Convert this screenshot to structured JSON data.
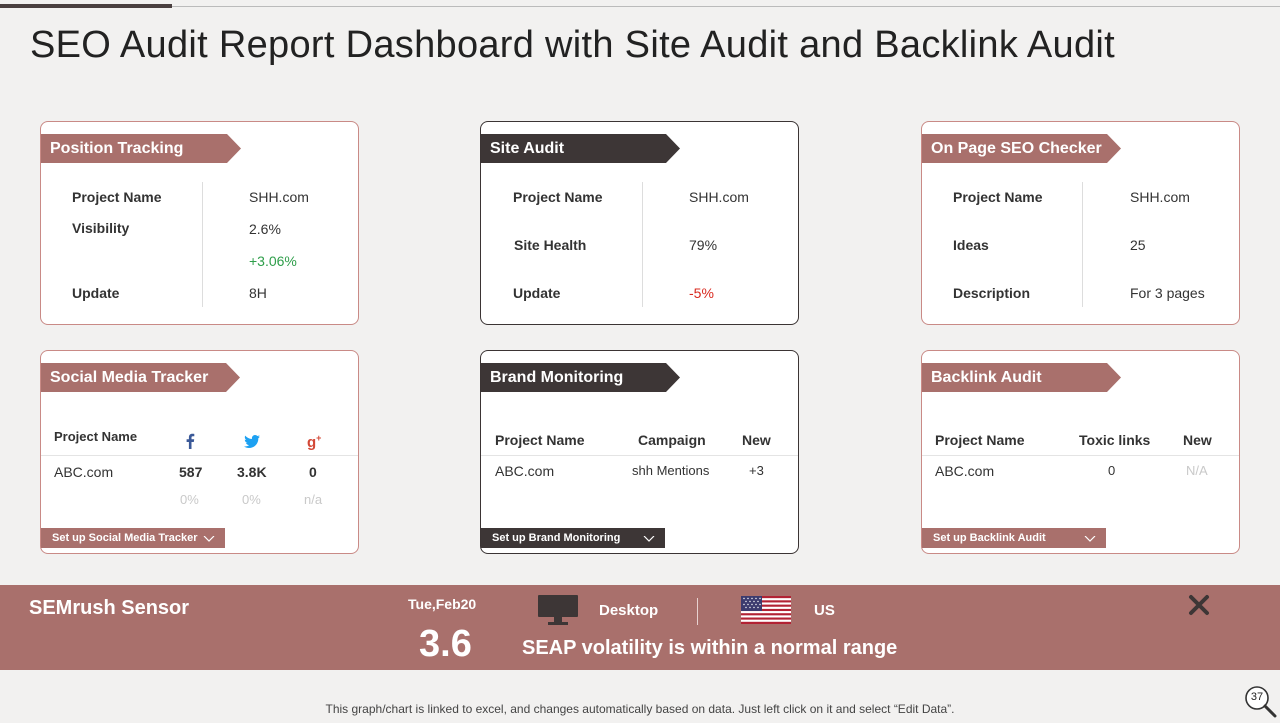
{
  "title": "SEO Audit Report Dashboard with Site Audit and Backlink Audit",
  "position_tracking": {
    "title": "Position Tracking",
    "rows": [
      {
        "label": "Project Name",
        "value": "SHH.com"
      },
      {
        "label": "Visibility",
        "value": "2.6%"
      },
      {
        "label": "",
        "value": "+3.06%"
      },
      {
        "label": "Update",
        "value": "8H"
      }
    ]
  },
  "site_audit": {
    "title": "Site Audit",
    "rows": [
      {
        "label": "Project Name",
        "value": "SHH.com"
      },
      {
        "label": "Site Health",
        "value": "79%"
      },
      {
        "label": "Update",
        "value": "-5%"
      }
    ]
  },
  "on_page_seo": {
    "title": "On Page SEO Checker",
    "rows": [
      {
        "label": "Project Name",
        "value": "SHH.com"
      },
      {
        "label": "Ideas",
        "value": "25"
      },
      {
        "label": "Description",
        "value": "For 3 pages"
      }
    ]
  },
  "social_media": {
    "title": "Social Media Tracker",
    "header": "Project Name",
    "project": "ABC.com",
    "facebook": {
      "value": "587",
      "change": "0%"
    },
    "twitter": {
      "value": "3.8K",
      "change": "0%"
    },
    "google_plus": {
      "value": "0",
      "change": "n/a"
    },
    "setup_label": "Set up Social Media Tracker"
  },
  "brand_monitoring": {
    "title": "Brand Monitoring",
    "headers": [
      "Project Name",
      "Campaign",
      "New"
    ],
    "row": [
      "ABC.com",
      "shh Mentions",
      "+3"
    ],
    "setup_label": "Set up Brand Monitoring"
  },
  "backlink_audit": {
    "title": "Backlink Audit",
    "headers": [
      "Project Name",
      "Toxic links",
      "New"
    ],
    "row": [
      "ABC.com",
      "0",
      "N/A"
    ],
    "setup_label": "Set up Backlink Audit"
  },
  "sensor": {
    "title": "SEMrush Sensor",
    "date": "Tue,Feb20",
    "score": "3.6",
    "device": "Desktop",
    "country": "US",
    "message": "SEAP volatility is within a normal range"
  },
  "footnote": "This graph/chart is linked to excel,  and changes automatically based on data. Just left click on it and select “Edit Data”.",
  "page_number": "37",
  "colors": {
    "rose": "#a9706c",
    "dark": "#3d3636",
    "positive": "#2e9e4a",
    "negative": "#d9281e"
  },
  "icons": [
    "facebook-icon",
    "twitter-icon",
    "google-plus-icon",
    "monitor-icon",
    "us-flag-icon",
    "close-icon",
    "magnifier-icon",
    "chevron-down-icon"
  ]
}
